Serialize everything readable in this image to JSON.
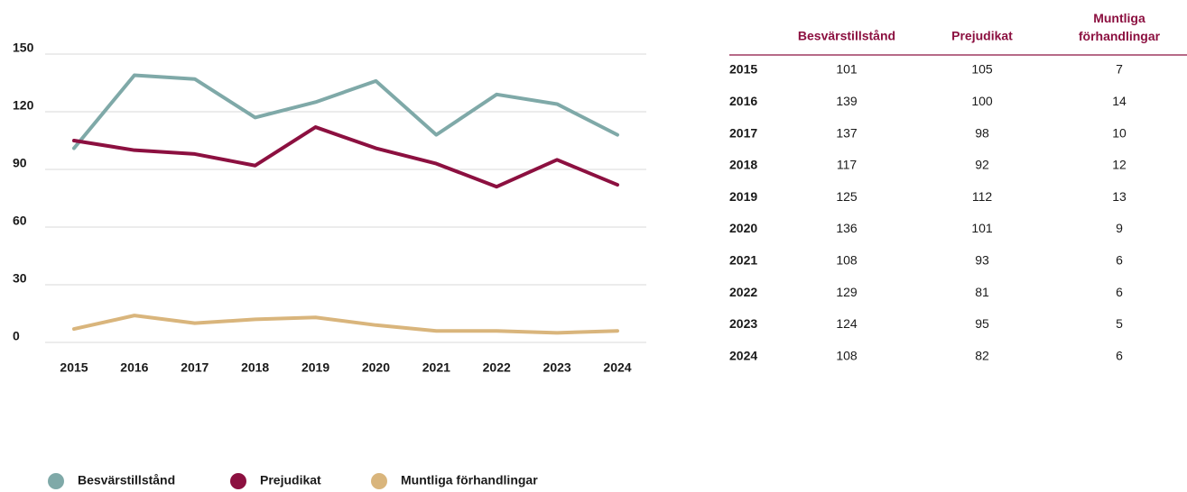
{
  "chart_data": {
    "type": "line",
    "categories": [
      "2015",
      "2016",
      "2017",
      "2018",
      "2019",
      "2020",
      "2021",
      "2022",
      "2023",
      "2024"
    ],
    "series": [
      {
        "name": "Besvärstillstånd",
        "color": "#7fa9a8",
        "values": [
          101,
          139,
          137,
          117,
          125,
          136,
          108,
          129,
          124,
          108
        ]
      },
      {
        "name": "Prejudikat",
        "color": "#8c1040",
        "values": [
          105,
          100,
          98,
          92,
          112,
          101,
          93,
          81,
          95,
          82
        ]
      },
      {
        "name": "Muntliga förhandlingar",
        "color": "#d9b57c",
        "values": [
          7,
          14,
          10,
          12,
          13,
          9,
          6,
          6,
          5,
          6
        ]
      }
    ],
    "ylim": [
      0,
      150
    ],
    "yticks": [
      0,
      30,
      60,
      90,
      120,
      150
    ],
    "grid": true
  }
}
